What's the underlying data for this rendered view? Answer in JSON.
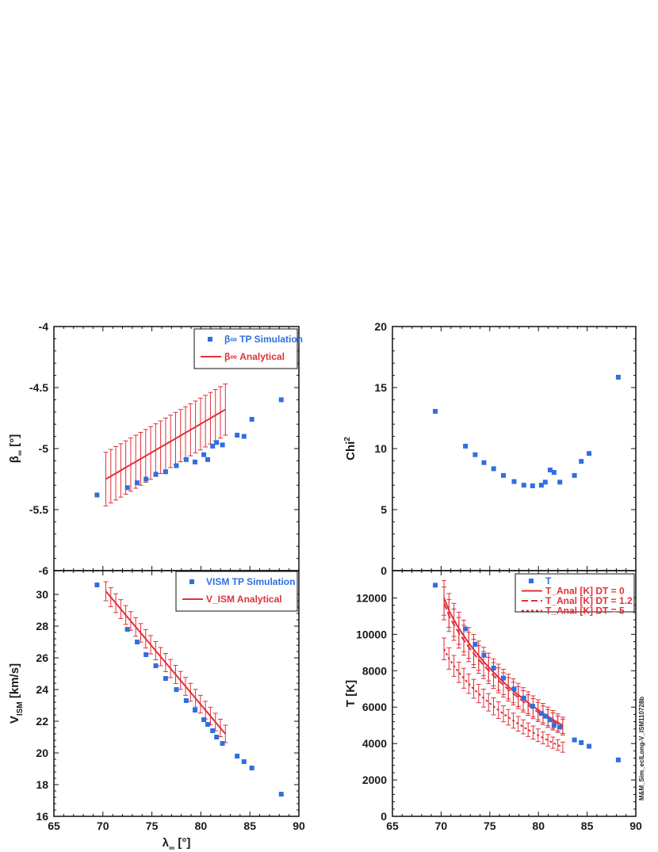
{
  "colors": {
    "sim": "#2f6fe0",
    "anal": "#e0303a",
    "axis": "#111111"
  },
  "side_label": "M&M_Sim_eclLong-V_ISM110728b",
  "chart_data": [
    {
      "id": "beta",
      "type": "scatter",
      "xlim": [
        65,
        90
      ],
      "ylim": [
        -6,
        -4
      ],
      "xticks": [
        "65",
        "70",
        "75",
        "80",
        "85",
        "90"
      ],
      "yticks": [
        "-6",
        "-5.5",
        "-5",
        "-4.5",
        "-4"
      ],
      "xlabel": "",
      "ylabel_main": "β",
      "ylabel_sub": "∞",
      "ylabel_rest": " [°]",
      "scatter": {
        "name": "β∞ TP Simulation",
        "x": [
          69.4,
          72.5,
          73.5,
          74.4,
          75.4,
          76.4,
          77.5,
          78.5,
          79.4,
          80.3,
          80.7,
          81.2,
          81.6,
          82.2,
          83.7,
          84.4,
          85.2,
          88.2
        ],
        "y": [
          -5.38,
          -5.32,
          -5.28,
          -5.25,
          -5.21,
          -5.19,
          -5.14,
          -5.09,
          -5.11,
          -5.05,
          -5.09,
          -4.98,
          -4.95,
          -4.97,
          -4.89,
          -4.9,
          -4.76,
          -4.6
        ]
      },
      "line": {
        "name": "β∞ Analytical",
        "x": [
          70.3,
          82.5
        ],
        "y": [
          -5.25,
          -4.68
        ],
        "err": [
          0.22,
          0.21
        ],
        "n": 25
      },
      "legend": [
        {
          "kind": "marker",
          "label": "β∞ TP Simulation"
        },
        {
          "kind": "solid",
          "label": "β∞ Analytical"
        }
      ]
    },
    {
      "id": "chi2",
      "type": "scatter",
      "xlim": [
        65,
        90
      ],
      "ylim": [
        0,
        20
      ],
      "xticks": [
        "65",
        "70",
        "75",
        "80",
        "85",
        "90"
      ],
      "yticks": [
        "0",
        "5",
        "10",
        "15",
        "20"
      ],
      "ylabel_main": "Chi",
      "ylabel_sup": "2",
      "scatter": {
        "name": "Chi2",
        "x": [
          69.4,
          72.5,
          73.5,
          74.4,
          75.4,
          76.4,
          77.5,
          78.5,
          79.4,
          80.3,
          80.7,
          81.2,
          81.6,
          82.2,
          83.7,
          84.4,
          85.2,
          88.2
        ],
        "y": [
          13.05,
          10.2,
          9.5,
          8.85,
          8.35,
          7.8,
          7.3,
          7.0,
          6.95,
          7.0,
          7.25,
          8.25,
          8.05,
          7.25,
          7.8,
          8.95,
          9.6,
          15.85
        ]
      }
    },
    {
      "id": "vism",
      "type": "scatter",
      "xlim": [
        65,
        90
      ],
      "ylim": [
        16,
        31.5
      ],
      "xticks": [
        "65",
        "70",
        "75",
        "80",
        "85",
        "90"
      ],
      "yticks": [
        "16",
        "18",
        "20",
        "22",
        "24",
        "26",
        "28",
        "30"
      ],
      "xlabel_main": "λ",
      "xlabel_sub": "∞",
      "xlabel_rest": " [°]",
      "ylabel_main": "V",
      "ylabel_sub": "ISM",
      "ylabel_rest": " [km/s]",
      "scatter": {
        "name": "VISM TP Simulation",
        "x": [
          69.4,
          72.5,
          73.5,
          74.4,
          75.4,
          76.4,
          77.5,
          78.5,
          79.4,
          80.3,
          80.7,
          81.2,
          81.6,
          82.2,
          83.7,
          84.4,
          85.2,
          88.2
        ],
        "y": [
          30.6,
          27.8,
          27.0,
          26.2,
          25.5,
          24.7,
          24.0,
          23.3,
          22.7,
          22.1,
          21.8,
          21.4,
          21.0,
          20.6,
          19.8,
          19.45,
          19.05,
          17.4
        ]
      },
      "line": {
        "name": "V_ISM Analytical",
        "x": [
          70.3,
          82.5
        ],
        "y": [
          30.2,
          21.2
        ],
        "err": [
          0.6,
          0.55
        ],
        "n": 25
      },
      "legend": [
        {
          "kind": "marker",
          "label": "VISM TP Simulation"
        },
        {
          "kind": "solid",
          "label": "V_ISM Analytical"
        }
      ]
    },
    {
      "id": "temp",
      "type": "scatter",
      "xlim": [
        65,
        90
      ],
      "ylim": [
        0,
        13500
      ],
      "xticks": [
        "65",
        "70",
        "75",
        "80",
        "85",
        "90"
      ],
      "yticks": [
        "0",
        "2000",
        "4000",
        "6000",
        "8000",
        "10000",
        "12000"
      ],
      "ylabel_main": "T [K]",
      "scatter": {
        "name": "T",
        "x": [
          69.4,
          72.5,
          73.5,
          74.4,
          75.4,
          76.4,
          77.5,
          78.5,
          79.4,
          80.3,
          80.7,
          81.2,
          81.6,
          82.2,
          83.7,
          84.4,
          85.2,
          88.2
        ],
        "y": [
          12700,
          10300,
          9450,
          8850,
          8150,
          7600,
          7000,
          6500,
          6050,
          5650,
          5500,
          5300,
          5000,
          4900,
          4200,
          4050,
          3850,
          3100
        ]
      },
      "curves": [
        {
          "name": "T_Anal [K] DT = 0",
          "style": "solid",
          "x": [
            70.3,
            82.5
          ],
          "a": 12000,
          "b": 5000,
          "err": [
            950,
            450
          ],
          "n": 25
        },
        {
          "name": "T_Anal [K] DT = 1.2",
          "style": "dash",
          "x": [
            70.3,
            82.5
          ],
          "a": 11700,
          "b": 4900,
          "err": [
            900,
            430
          ],
          "n": 25
        },
        {
          "name": "T_Anal [K] DT = 5",
          "style": "dot",
          "x": [
            70.3,
            82.5
          ],
          "a": 9200,
          "b": 3800,
          "err": [
            600,
            280
          ],
          "n": 25
        }
      ],
      "legend": [
        {
          "kind": "marker",
          "label": "T"
        },
        {
          "kind": "solid",
          "label": "T_Anal [K] DT = 0"
        },
        {
          "kind": "dash",
          "label": "T_Anal [K] DT = 1.2"
        },
        {
          "kind": "dot",
          "label": "T_Anal [K] DT = 5"
        }
      ]
    }
  ]
}
